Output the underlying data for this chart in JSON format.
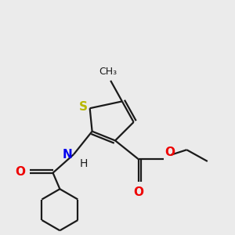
{
  "bg_color": "#ebebeb",
  "bond_color": "#1a1a1a",
  "S_color": "#b8b800",
  "N_color": "#0000ee",
  "O_color": "#ee0000",
  "line_width": 1.6,
  "font_size": 10,
  "fig_size": [
    3.0,
    3.0
  ],
  "dpi": 100,
  "xlim": [
    0,
    10
  ],
  "ylim": [
    0,
    10
  ]
}
